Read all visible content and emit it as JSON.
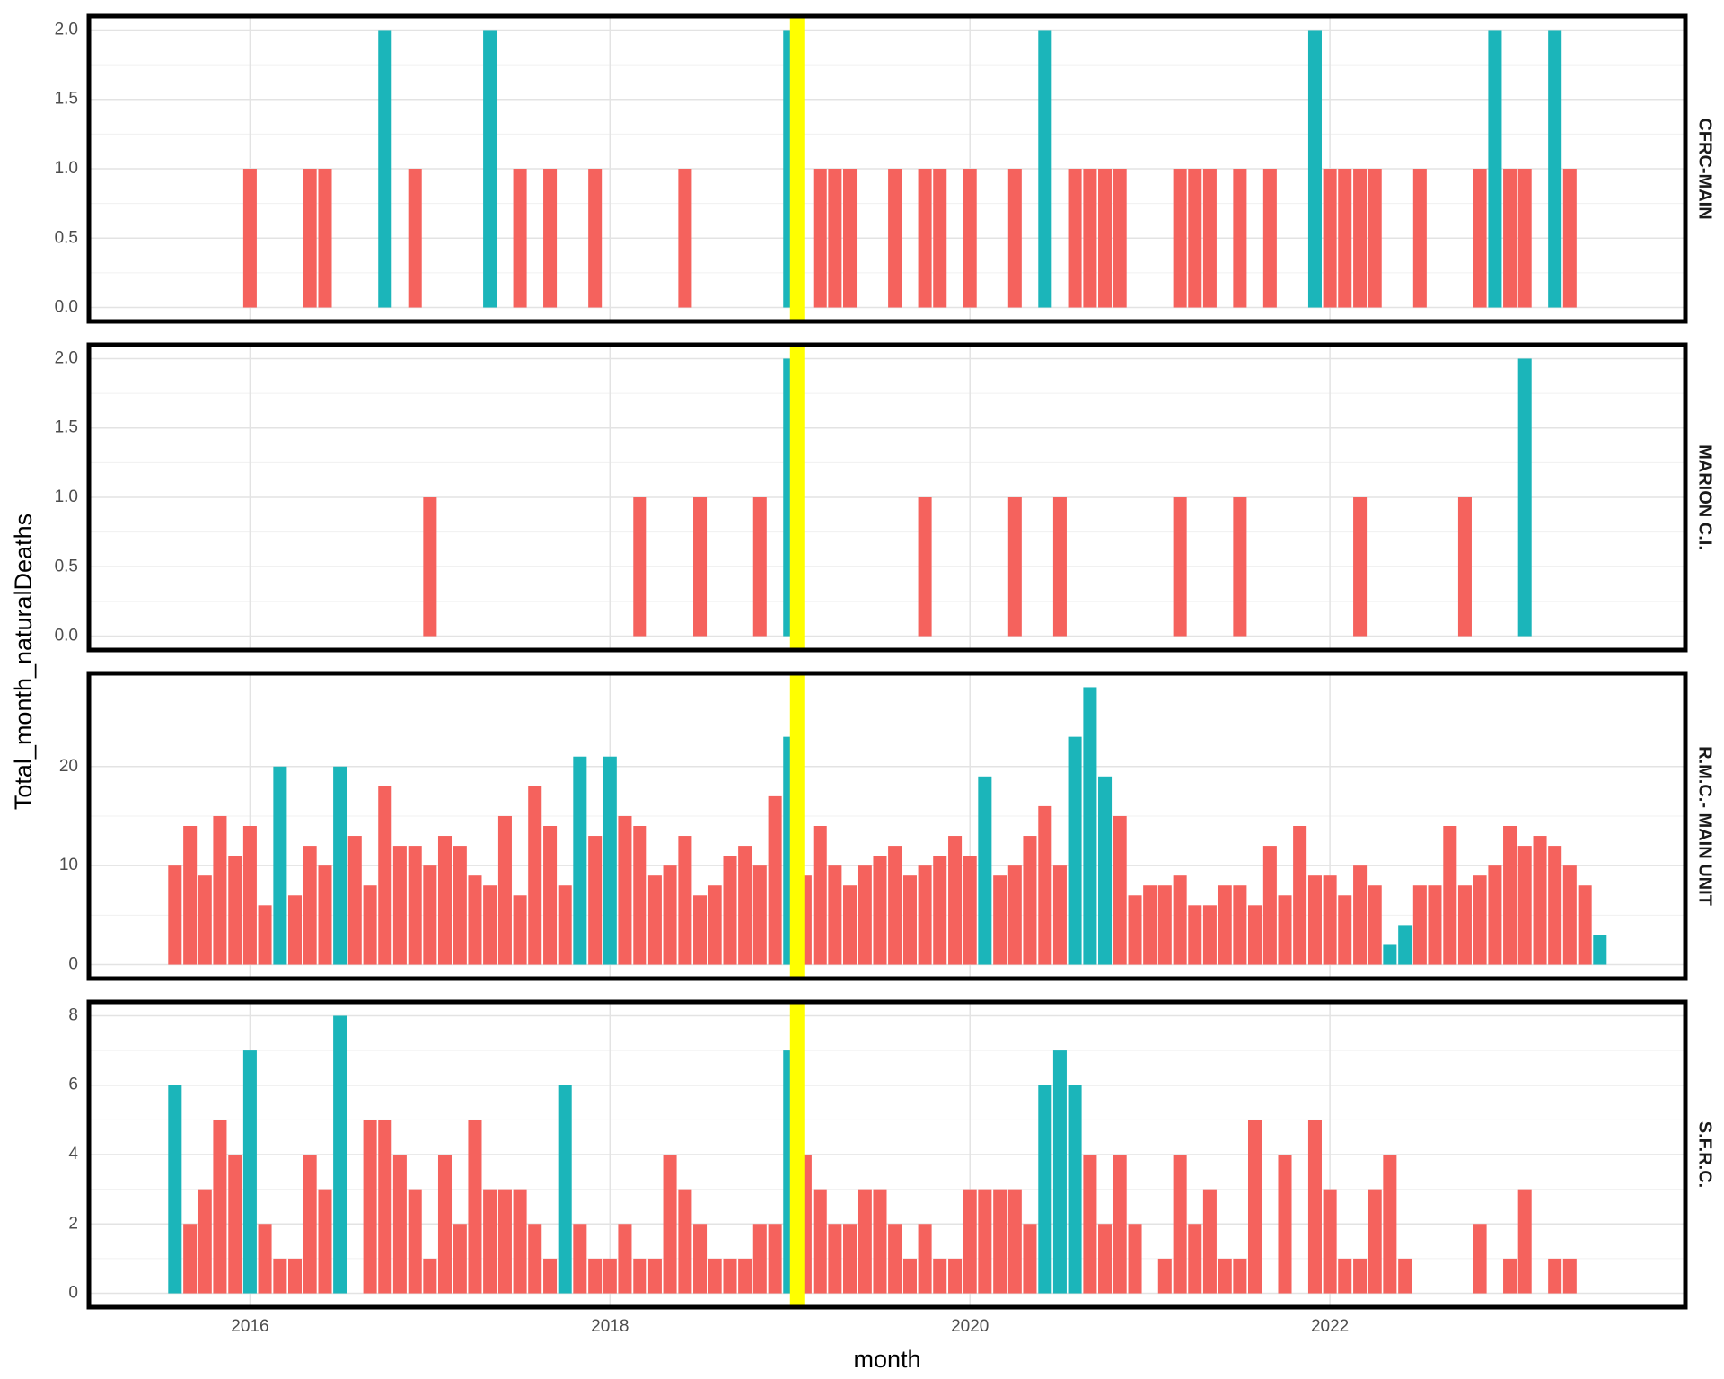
{
  "shared": {
    "xlabel": "month",
    "ylabel": "Total_month_naturalDeaths",
    "xlim": [
      2015.105,
      2023.975
    ],
    "xticks": [
      2016,
      2018,
      2020,
      2022
    ],
    "grid": true,
    "vline": 2019.04,
    "vline_color": "#FFFF00"
  },
  "chart_data": [
    {
      "type": "bar",
      "facet": "CFRC-MAIN",
      "ylim": [
        -0.1,
        2.1
      ],
      "yticks": [
        {
          "value": 0,
          "label": "0.0"
        },
        0.5,
        {
          "value": 1,
          "label": "1.0"
        },
        1.5,
        {
          "value": 2,
          "label": "2.0"
        }
      ],
      "series": [
        {
          "color": "#F5625D",
          "x": [
            2016.0,
            2016.333,
            2016.417,
            2016.917,
            2017.5,
            2017.667,
            2017.917,
            2018.417,
            2019.167,
            2019.25,
            2019.333,
            2019.583,
            2019.75,
            2019.833,
            2020.0,
            2020.25,
            2020.583,
            2020.667,
            2020.75,
            2020.833,
            2021.167,
            2021.25,
            2021.333,
            2021.5,
            2021.667,
            2022.0,
            2022.083,
            2022.167,
            2022.25,
            2022.5,
            2022.833,
            2023.0,
            2023.083,
            2023.333
          ],
          "values": [
            1,
            1,
            1,
            1,
            1,
            1,
            1,
            1,
            1,
            1,
            1,
            1,
            1,
            1,
            1,
            1,
            1,
            1,
            1,
            1,
            1,
            1,
            1,
            1,
            1,
            1,
            1,
            1,
            1,
            1,
            1,
            1,
            1,
            1
          ]
        },
        {
          "color": "#1BB5BA",
          "x": [
            2016.75,
            2017.333,
            2019.0,
            2020.417,
            2021.917,
            2022.917,
            2023.25
          ],
          "values": [
            2,
            2,
            2,
            2,
            2,
            2,
            2
          ]
        }
      ]
    },
    {
      "type": "bar",
      "facet": "MARION C.I.",
      "ylim": [
        -0.1,
        2.1
      ],
      "yticks": [
        {
          "value": 0,
          "label": "0.0"
        },
        0.5,
        {
          "value": 1,
          "label": "1.0"
        },
        1.5,
        {
          "value": 2,
          "label": "2.0"
        }
      ],
      "series": [
        {
          "color": "#F5625D",
          "x": [
            2017.0,
            2018.167,
            2018.5,
            2018.833,
            2019.75,
            2020.25,
            2020.5,
            2021.167,
            2021.5,
            2022.167,
            2022.75
          ],
          "values": [
            1,
            1,
            1,
            1,
            1,
            1,
            1,
            1,
            1,
            1,
            1
          ]
        },
        {
          "color": "#1BB5BA",
          "x": [
            2019.0,
            2023.083
          ],
          "values": [
            2,
            2
          ]
        }
      ]
    },
    {
      "type": "bar",
      "facet": "R.M.C.- MAIN UNIT",
      "ylim": [
        -1.4,
        29.4
      ],
      "yticks": [
        0,
        10,
        20
      ],
      "series": [
        {
          "color": "#F5625D",
          "x": [
            2015.583,
            2015.667,
            2015.75,
            2015.833,
            2015.917,
            2016.0,
            2016.083,
            2016.25,
            2016.333,
            2016.417,
            2016.583,
            2016.667,
            2016.75,
            2016.833,
            2016.917,
            2017.0,
            2017.083,
            2017.167,
            2017.25,
            2017.333,
            2017.417,
            2017.5,
            2017.583,
            2017.667,
            2017.75,
            2017.917,
            2018.083,
            2018.167,
            2018.25,
            2018.333,
            2018.417,
            2018.5,
            2018.583,
            2018.667,
            2018.75,
            2018.833,
            2018.917,
            2019.083,
            2019.167,
            2019.25,
            2019.333,
            2019.417,
            2019.5,
            2019.583,
            2019.667,
            2019.75,
            2019.833,
            2019.917,
            2020.0,
            2020.167,
            2020.25,
            2020.333,
            2020.417,
            2020.5,
            2020.833,
            2020.917,
            2021.0,
            2021.083,
            2021.167,
            2021.25,
            2021.333,
            2021.417,
            2021.5,
            2021.583,
            2021.667,
            2021.75,
            2021.833,
            2021.917,
            2022.0,
            2022.083,
            2022.167,
            2022.25,
            2022.5,
            2022.583,
            2022.667,
            2022.75,
            2022.833,
            2022.917,
            2023.0,
            2023.083,
            2023.167,
            2023.25,
            2023.333,
            2023.417
          ],
          "values": [
            10,
            14,
            9,
            15,
            11,
            14,
            6,
            7,
            12,
            10,
            13,
            8,
            18,
            12,
            12,
            10,
            13,
            12,
            9,
            8,
            15,
            7,
            18,
            14,
            8,
            13,
            15,
            14,
            9,
            10,
            13,
            7,
            8,
            11,
            12,
            10,
            17,
            9,
            14,
            10,
            8,
            10,
            11,
            12,
            9,
            10,
            11,
            13,
            11,
            9,
            10,
            13,
            16,
            10,
            15,
            7,
            8,
            8,
            9,
            6,
            6,
            8,
            8,
            6,
            12,
            7,
            14,
            9,
            9,
            7,
            10,
            8,
            8,
            8,
            14,
            8,
            9,
            10,
            14,
            12,
            13,
            12,
            10,
            8
          ]
        },
        {
          "color": "#1BB5BA",
          "x": [
            2016.167,
            2016.5,
            2017.833,
            2018.0,
            2019.0,
            2020.083,
            2020.583,
            2020.667,
            2020.75,
            2022.333,
            2022.417,
            2023.5
          ],
          "values": [
            20,
            20,
            21,
            21,
            23,
            19,
            23,
            28,
            19,
            2,
            4,
            3
          ]
        }
      ]
    },
    {
      "type": "bar",
      "facet": "S.F.R.C.",
      "ylim": [
        -0.4,
        8.4
      ],
      "yticks": [
        0,
        2,
        4,
        6,
        8
      ],
      "series": [
        {
          "color": "#F5625D",
          "x": [
            2015.667,
            2015.75,
            2015.833,
            2015.917,
            2016.083,
            2016.167,
            2016.25,
            2016.333,
            2016.417,
            2016.667,
            2016.75,
            2016.833,
            2016.917,
            2017.0,
            2017.083,
            2017.167,
            2017.25,
            2017.333,
            2017.417,
            2017.5,
            2017.583,
            2017.667,
            2017.833,
            2017.917,
            2018.0,
            2018.083,
            2018.167,
            2018.25,
            2018.333,
            2018.417,
            2018.5,
            2018.583,
            2018.667,
            2018.75,
            2018.833,
            2018.917,
            2019.083,
            2019.167,
            2019.25,
            2019.333,
            2019.417,
            2019.5,
            2019.583,
            2019.667,
            2019.75,
            2019.833,
            2019.917,
            2020.0,
            2020.083,
            2020.167,
            2020.25,
            2020.333,
            2020.667,
            2020.75,
            2020.833,
            2020.917,
            2021.083,
            2021.167,
            2021.25,
            2021.333,
            2021.417,
            2021.5,
            2021.583,
            2021.75,
            2021.917,
            2022.0,
            2022.083,
            2022.167,
            2022.25,
            2022.333,
            2022.417,
            2022.833,
            2023.0,
            2023.083,
            2023.25,
            2023.333
          ],
          "values": [
            2,
            3,
            5,
            4,
            2,
            1,
            1,
            4,
            3,
            5,
            5,
            4,
            3,
            1,
            4,
            2,
            5,
            3,
            3,
            3,
            2,
            1,
            2,
            1,
            1,
            2,
            1,
            1,
            4,
            3,
            2,
            1,
            1,
            1,
            2,
            2,
            4,
            3,
            2,
            2,
            3,
            3,
            2,
            1,
            2,
            1,
            1,
            3,
            3,
            3,
            3,
            2,
            4,
            2,
            4,
            2,
            1,
            4,
            2,
            3,
            1,
            1,
            5,
            4,
            5,
            3,
            1,
            1,
            3,
            4,
            1,
            2,
            1,
            3,
            1,
            1
          ]
        },
        {
          "color": "#1BB5BA",
          "x": [
            2015.583,
            2016.0,
            2016.5,
            2017.75,
            2019.0,
            2020.417,
            2020.5,
            2020.583
          ],
          "values": [
            6,
            7,
            8,
            6,
            7,
            6,
            7,
            6
          ]
        }
      ]
    }
  ]
}
